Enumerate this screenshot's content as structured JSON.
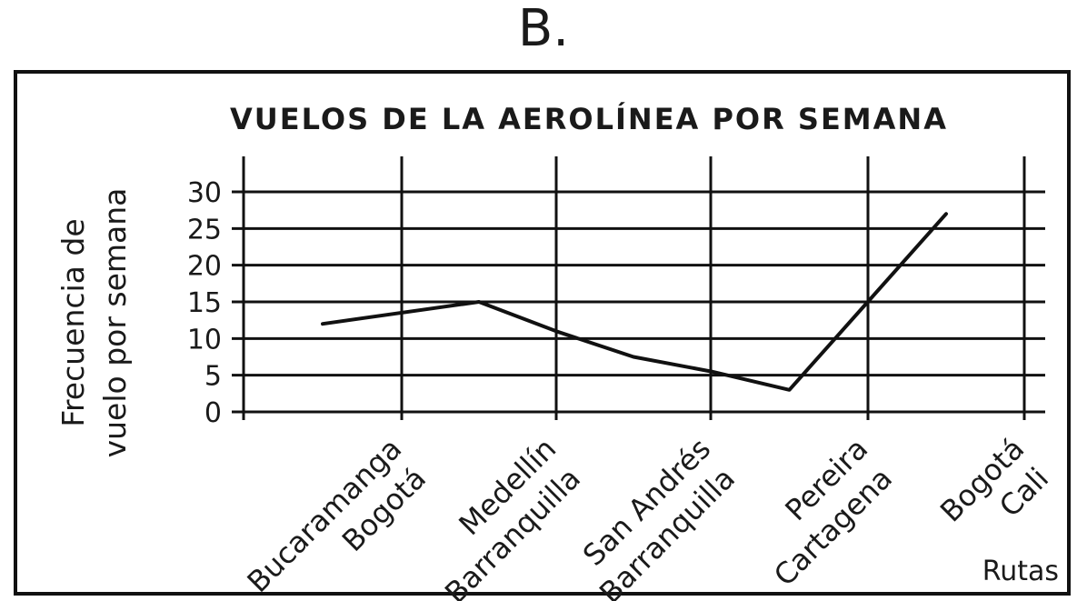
{
  "figure": {
    "label": "B."
  },
  "chart_data": {
    "type": "line",
    "title": "VUELOS DE LA AEROLÍNEA POR SEMANA",
    "ylabel_lines": [
      "Frecuencia de",
      "vuelo por semana"
    ],
    "xlabel": "Rutas",
    "categories": [
      [
        "Bucaramanga",
        "Bogotá"
      ],
      [
        "Medellín",
        "Barranquilla"
      ],
      [
        "San Andrés",
        "Barranquilla"
      ],
      [
        "Pereira",
        "Cartagena"
      ],
      [
        "Bogotá",
        "Cali"
      ]
    ],
    "yticks": [
      "30",
      "25",
      "20",
      "15",
      "10",
      "5",
      "0"
    ],
    "ytick_values": [
      30,
      25,
      20,
      15,
      10,
      5,
      0
    ],
    "ylim": [
      0,
      30
    ],
    "grid": true,
    "series": [
      {
        "points": [
          {
            "x": 0,
            "y": 12
          },
          {
            "x": 1,
            "y": 15
          },
          {
            "x": 1.5,
            "y": 11
          },
          {
            "x": 2,
            "y": 7.5
          },
          {
            "x": 2.5,
            "y": 5.5
          },
          {
            "x": 3,
            "y": 3
          },
          {
            "x": 3.5,
            "y": 15
          },
          {
            "x": 4,
            "y": 27
          }
        ]
      }
    ],
    "line_color": "#111111"
  }
}
